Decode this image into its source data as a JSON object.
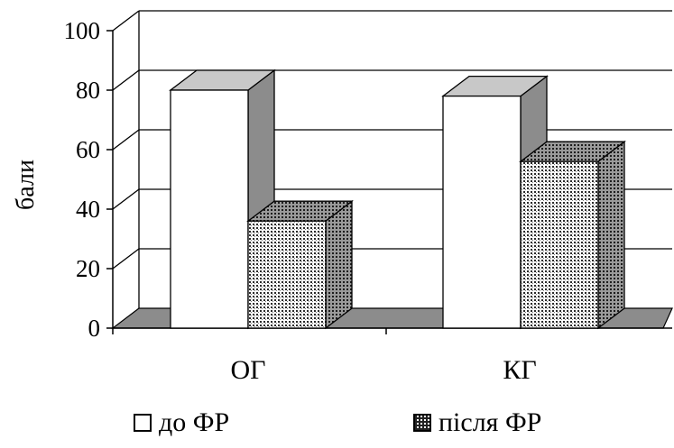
{
  "chart_data": {
    "type": "bar",
    "categories": [
      "ОГ",
      "КГ"
    ],
    "series": [
      {
        "name": "до ФР",
        "values": [
          80,
          78
        ],
        "pattern": "plain"
      },
      {
        "name": "після ФР",
        "values": [
          36,
          56
        ],
        "pattern": "dotted"
      }
    ],
    "xlabel": "",
    "ylabel": "бали",
    "ylim": [
      0,
      100
    ],
    "yticks": [
      0,
      20,
      40,
      60,
      80,
      100
    ],
    "grid": true,
    "legend_position": "bottom",
    "style": "3d",
    "colors": {
      "plain_face": "#ffffff",
      "plain_top": "#c8c8c8",
      "plain_side": "#8c8c8c",
      "dotted_side": "#7a7a7a",
      "floor": "#8c8c8c",
      "line": "#000000"
    }
  }
}
